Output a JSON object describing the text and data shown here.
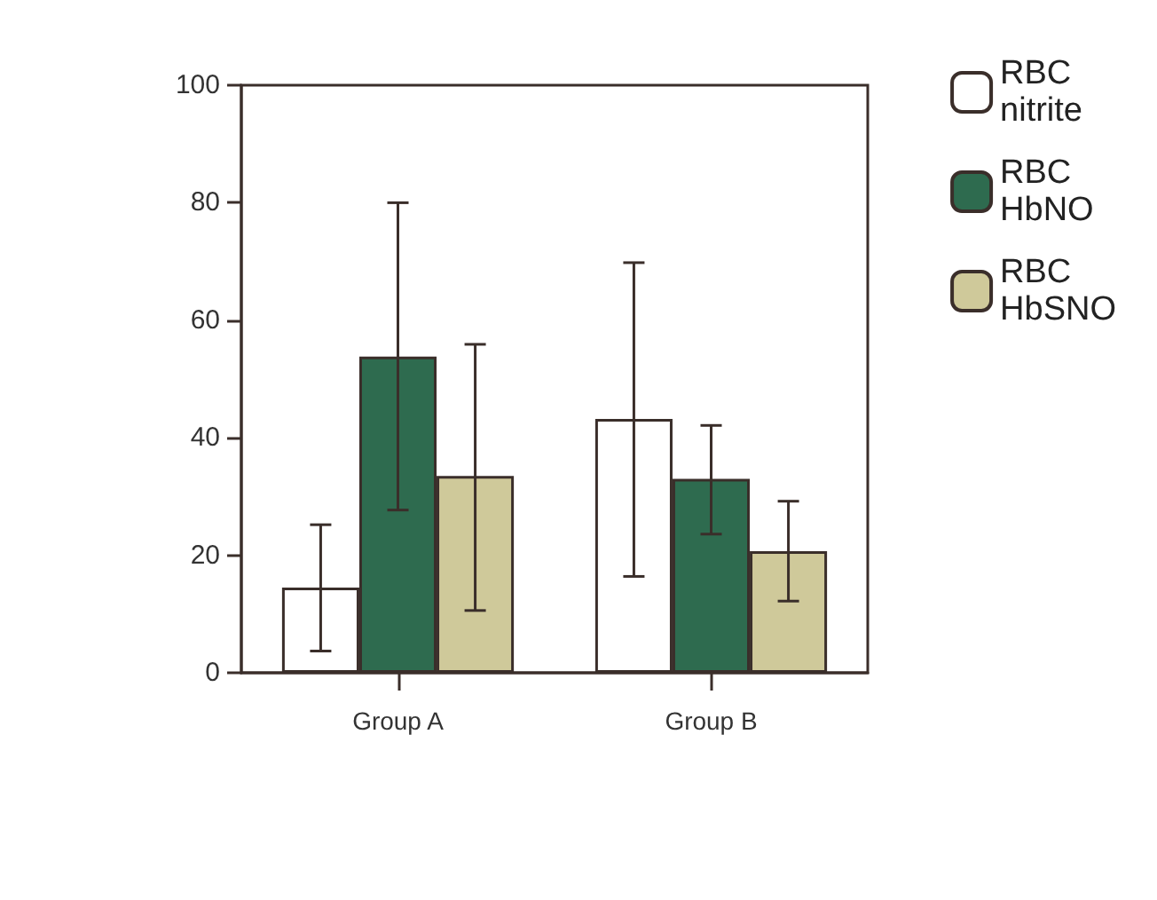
{
  "chart_data": {
    "type": "bar",
    "categories": [
      "Group A",
      "Group B"
    ],
    "series": [
      {
        "name": "RBC\nnitrite",
        "color": "#ffffff",
        "values": [
          14.5,
          43.2
        ],
        "errors": [
          [
            3.7,
            25.2
          ],
          [
            16.4,
            69.8
          ]
        ]
      },
      {
        "name": "RBC\nHbNO",
        "color": "#2e6b4f",
        "values": [
          53.8,
          33
        ],
        "errors": [
          [
            27.7,
            80
          ],
          [
            23.6,
            42.1
          ]
        ]
      },
      {
        "name": "RBC\nHbSNO",
        "color": "#cfc99a",
        "values": [
          33.5,
          20.7
        ],
        "errors": [
          [
            10.6,
            55.9
          ],
          [
            12.2,
            29.2
          ]
        ]
      }
    ],
    "ylim": [
      0,
      100
    ],
    "yticks": [
      0,
      20,
      40,
      60,
      80,
      100
    ],
    "grid": false,
    "legend": "right"
  }
}
